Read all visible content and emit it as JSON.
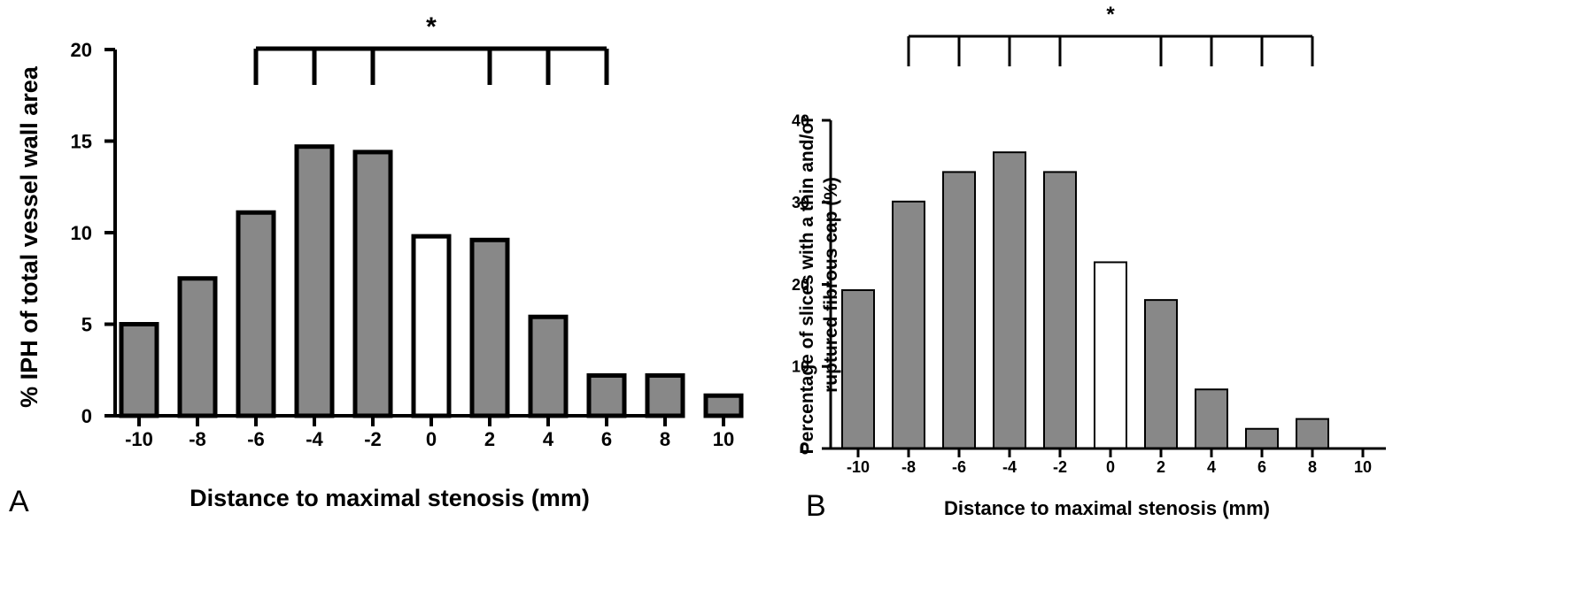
{
  "chart_data": [
    {
      "type": "bar",
      "panel": "A",
      "categories": [
        "-10",
        "-8",
        "-6",
        "-4",
        "-2",
        "0",
        "2",
        "4",
        "6",
        "8",
        "10"
      ],
      "values": [
        5.0,
        7.5,
        11.1,
        14.7,
        14.4,
        9.8,
        9.6,
        5.4,
        2.2,
        2.2,
        1.1
      ],
      "bar_colors": [
        "#888888",
        "#888888",
        "#888888",
        "#888888",
        "#888888",
        "#ffffff",
        "#888888",
        "#888888",
        "#888888",
        "#888888",
        "#888888"
      ],
      "xlabel": "Distance to maximal stenosis (mm)",
      "ylabel": "% IPH of total vessel wall area",
      "ylim": [
        0,
        20
      ],
      "yticks": [
        "0",
        "5",
        "10",
        "15",
        "20"
      ],
      "grid": false,
      "significance": {
        "marker": "*",
        "span": [
          "-6",
          "6"
        ],
        "ticks_at": [
          "-6",
          "-4",
          "-2",
          "2",
          "4",
          "6"
        ]
      }
    },
    {
      "type": "bar",
      "panel": "B",
      "categories": [
        "-10",
        "-8",
        "-6",
        "-4",
        "-2",
        "0",
        "2",
        "4",
        "6",
        "8",
        "10"
      ],
      "values": [
        19.3,
        30.1,
        33.7,
        36.1,
        33.7,
        22.7,
        18.1,
        7.2,
        2.4,
        3.6,
        0
      ],
      "bar_colors": [
        "#888888",
        "#888888",
        "#888888",
        "#888888",
        "#888888",
        "#ffffff",
        "#888888",
        "#888888",
        "#888888",
        "#888888",
        "#888888"
      ],
      "xlabel": "Distance to maximal stenosis (mm)",
      "ylabel": [
        "Percentage of slices with a thin and/or",
        "ruptured fibrous cap (%)"
      ],
      "ylim": [
        0,
        40
      ],
      "yticks": [
        "0",
        "10",
        "20",
        "30",
        "40"
      ],
      "grid": false,
      "significance": {
        "marker": "*",
        "span": [
          "-8",
          "8"
        ],
        "ticks_at": [
          "-8",
          "-6",
          "-4",
          "-2",
          "2",
          "4",
          "6",
          "8"
        ]
      }
    }
  ],
  "panel_labels": {
    "a": "A",
    "b": "B"
  }
}
